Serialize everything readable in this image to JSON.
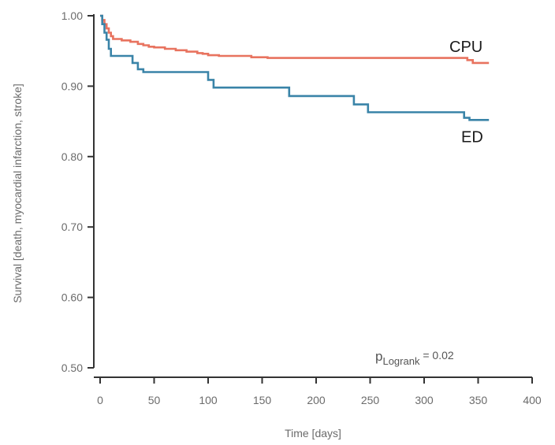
{
  "chart_data": {
    "type": "line",
    "step": true,
    "xlabel": "Time [days]",
    "ylabel": "Survival [death, myocardial infarction, stroke]",
    "xlim": [
      0,
      400
    ],
    "ylim": [
      0.5,
      1.0
    ],
    "x_ticks": [
      "0",
      "50",
      "100",
      "150",
      "200",
      "250",
      "300",
      "350",
      "400"
    ],
    "y_ticks": [
      "0.50",
      "0.60",
      "0.70",
      "0.80",
      "0.90",
      "1.00"
    ],
    "grid": false,
    "series": [
      {
        "name": "CPU",
        "color": "#e8735f",
        "x": [
          0,
          2,
          4,
          6,
          8,
          10,
          12,
          20,
          28,
          35,
          40,
          45,
          50,
          60,
          70,
          80,
          90,
          95,
          100,
          110,
          130,
          140,
          155,
          340,
          345,
          360
        ],
        "y": [
          1.0,
          0.994,
          0.988,
          0.982,
          0.976,
          0.971,
          0.967,
          0.965,
          0.963,
          0.96,
          0.958,
          0.956,
          0.955,
          0.953,
          0.951,
          0.949,
          0.947,
          0.946,
          0.944,
          0.943,
          0.943,
          0.941,
          0.94,
          0.937,
          0.933,
          0.933
        ]
      },
      {
        "name": "ED",
        "color": "#3a84a8",
        "x": [
          0,
          2,
          4,
          6,
          8,
          10,
          30,
          35,
          40,
          100,
          105,
          175,
          235,
          248,
          337,
          342,
          360
        ],
        "y": [
          1.0,
          0.988,
          0.976,
          0.966,
          0.953,
          0.943,
          0.933,
          0.924,
          0.92,
          0.909,
          0.898,
          0.886,
          0.874,
          0.863,
          0.855,
          0.852,
          0.852
        ]
      }
    ],
    "annotations": {
      "pvalue_p": "p",
      "pvalue_sub": "Logrank",
      "pvalue_rest": " = 0.02"
    }
  }
}
